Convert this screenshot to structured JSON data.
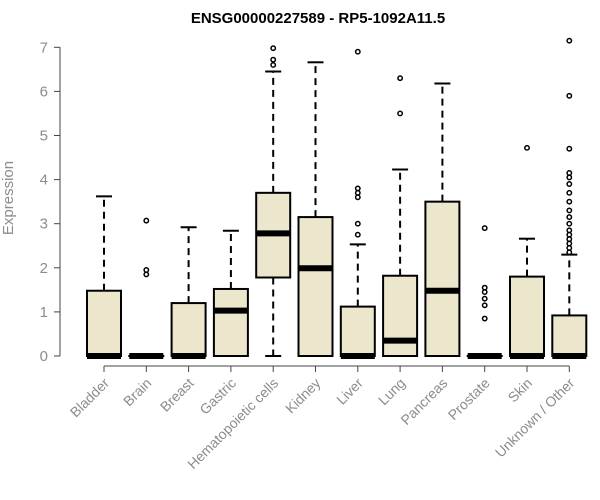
{
  "chart_data": {
    "type": "boxplot",
    "title": "ENSG00000227589 - RP5-1092A11.5",
    "ylabel": "Expression",
    "xlabel": "",
    "ylim": [
      0,
      7.2
    ],
    "yticks": [
      0,
      1,
      2,
      3,
      4,
      5,
      6,
      7
    ],
    "categories": [
      "Bladder",
      "Brain",
      "Breast",
      "Gastric",
      "Hematopoietic cells",
      "Kidney",
      "Liver",
      "Lung",
      "Pancreas",
      "Prostate",
      "Skin",
      "Unknown / Other"
    ],
    "boxes": [
      {
        "whisker_low": 0,
        "q1": 0,
        "median": 0,
        "q3": 1.48,
        "whisker_high": 3.62,
        "outliers": []
      },
      {
        "whisker_low": 0,
        "q1": 0,
        "median": 0,
        "q3": 0,
        "whisker_high": 0,
        "outliers": [
          1.85,
          1.95,
          3.07
        ]
      },
      {
        "whisker_low": 0,
        "q1": 0,
        "median": 0,
        "q3": 1.2,
        "whisker_high": 2.92,
        "outliers": []
      },
      {
        "whisker_low": 0,
        "q1": 0,
        "median": 1.03,
        "q3": 1.52,
        "whisker_high": 2.84,
        "outliers": []
      },
      {
        "whisker_low": 0,
        "q1": 1.78,
        "median": 2.78,
        "q3": 3.7,
        "whisker_high": 6.45,
        "outliers": [
          6.6,
          6.72,
          6.98
        ]
      },
      {
        "whisker_low": 0,
        "q1": 0,
        "median": 1.99,
        "q3": 3.15,
        "whisker_high": 6.66,
        "outliers": []
      },
      {
        "whisker_low": 0,
        "q1": 0,
        "median": 0,
        "q3": 1.12,
        "whisker_high": 2.53,
        "outliers": [
          2.75,
          3.0,
          3.6,
          3.7,
          3.8,
          6.9
        ]
      },
      {
        "whisker_low": 0,
        "q1": 0,
        "median": 0.35,
        "q3": 1.82,
        "whisker_high": 4.23,
        "outliers": [
          5.5,
          6.3
        ]
      },
      {
        "whisker_low": 0,
        "q1": 0,
        "median": 1.48,
        "q3": 3.5,
        "whisker_high": 6.18,
        "outliers": []
      },
      {
        "whisker_low": 0,
        "q1": 0,
        "median": 0,
        "q3": 0,
        "whisker_high": 0,
        "outliers": [
          0.85,
          1.15,
          1.3,
          1.45,
          1.55,
          2.9
        ]
      },
      {
        "whisker_low": 0,
        "q1": 0,
        "median": 0,
        "q3": 1.8,
        "whisker_high": 2.66,
        "outliers": [
          4.72
        ]
      },
      {
        "whisker_low": 0,
        "q1": 0,
        "median": 0,
        "q3": 0.92,
        "whisker_high": 2.3,
        "outliers": [
          2.35,
          2.45,
          2.55,
          2.65,
          2.75,
          2.85,
          3.0,
          3.15,
          3.3,
          3.5,
          3.7,
          3.9,
          4.05,
          4.15,
          4.7,
          5.9,
          7.15
        ]
      }
    ],
    "colors": {
      "box_fill": "#ece6cd",
      "stroke": "#000000",
      "text": "#8c8c8c"
    }
  }
}
